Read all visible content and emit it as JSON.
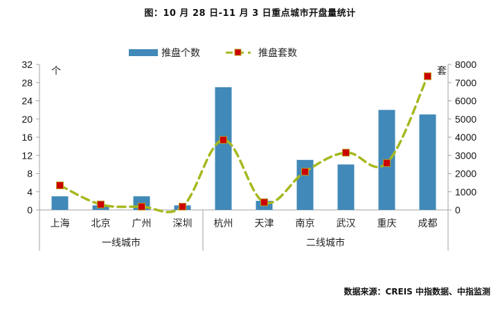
{
  "title": "图：10 月 28 日-11 月 3 日重点城市开盘量统计",
  "source": "数据来源：CREIS 中指数据、中指监测",
  "legend": {
    "bar_label": "推盘个数",
    "line_label": "推盘套数"
  },
  "axes": {
    "left_unit": "个",
    "right_unit": "套",
    "left_ticks": [
      "0",
      "4",
      "8",
      "12",
      "16",
      "20",
      "24",
      "28",
      "32"
    ],
    "right_ticks": [
      "0",
      "1000",
      "2000",
      "3000",
      "4000",
      "5000",
      "6000",
      "7000",
      "8000"
    ]
  },
  "groups": [
    {
      "label": "一线城市",
      "start": 0,
      "end": 4
    },
    {
      "label": "二线城市",
      "start": 4,
      "end": 10
    }
  ],
  "colors": {
    "bar": "#4189b8",
    "line": "#a6b81e",
    "marker_fill": "#cc0000",
    "marker_border": "#b8a020",
    "axis": "#a0a0a0"
  },
  "chart_data": {
    "type": "bar+line",
    "title": "图：10 月 28 日-11 月 3 日重点城市开盘量统计",
    "categories": [
      "上海",
      "北京",
      "广州",
      "深圳",
      "杭州",
      "天津",
      "南京",
      "武汉",
      "重庆",
      "成都"
    ],
    "category_groups": [
      {
        "label": "一线城市",
        "categories": [
          "上海",
          "北京",
          "广州",
          "深圳"
        ]
      },
      {
        "label": "二线城市",
        "categories": [
          "杭州",
          "天津",
          "南京",
          "武汉",
          "重庆",
          "成都"
        ]
      }
    ],
    "series": [
      {
        "name": "推盘个数",
        "type": "bar",
        "axis": "left",
        "unit": "个",
        "values": [
          3,
          1,
          3,
          1,
          27,
          2,
          11,
          10,
          22,
          21
        ]
      },
      {
        "name": "推盘套数",
        "type": "line",
        "axis": "right",
        "unit": "套",
        "values": [
          1350,
          300,
          180,
          180,
          3850,
          420,
          2100,
          3150,
          2580,
          7350
        ]
      }
    ],
    "ylabel_left": "个",
    "ylabel_right": "套",
    "ylim_left": [
      0,
      32
    ],
    "ylim_right": [
      0,
      8000
    ],
    "yticks_left": [
      0,
      4,
      8,
      12,
      16,
      20,
      24,
      28,
      32
    ],
    "yticks_right": [
      0,
      1000,
      2000,
      3000,
      4000,
      5000,
      6000,
      7000,
      8000
    ],
    "grid": false,
    "legend_position": "top",
    "source": "数据来源：CREIS 中指数据、中指监测"
  }
}
